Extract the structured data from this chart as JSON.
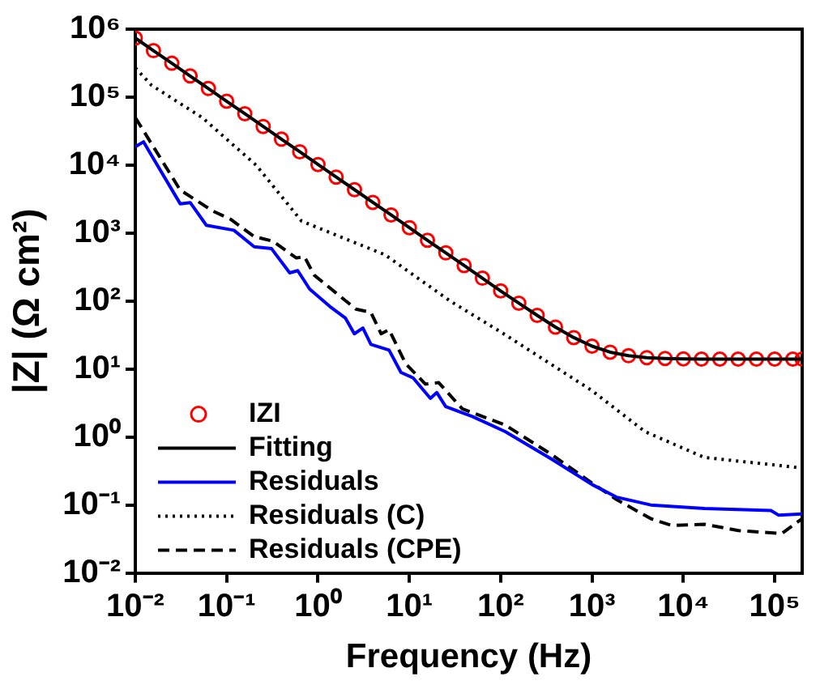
{
  "chart_data": {
    "type": "line",
    "xlabel": "Frequency (Hz)",
    "ylabel": "|Z| (Ω cm²)",
    "log": "xy",
    "grid": false,
    "legend": "bottom left",
    "xlim": [
      0.01,
      200000
    ],
    "ylim": [
      0.01,
      1000000
    ],
    "xticks": [
      {
        "value": 0.01,
        "label": "10⁻²"
      },
      {
        "value": 0.1,
        "label": "10⁻¹"
      },
      {
        "value": 1,
        "label": "10⁰"
      },
      {
        "value": 10,
        "label": "10¹"
      },
      {
        "value": 100,
        "label": "10²"
      },
      {
        "value": 1000,
        "label": "10³"
      },
      {
        "value": 10000,
        "label": "10⁴"
      },
      {
        "value": 100000,
        "label": "10⁵"
      }
    ],
    "yticks": [
      {
        "value": 0.01,
        "label": "10⁻²"
      },
      {
        "value": 0.1,
        "label": "10⁻¹"
      },
      {
        "value": 1,
        "label": "10⁰"
      },
      {
        "value": 10,
        "label": "10¹"
      },
      {
        "value": 100,
        "label": "10²"
      },
      {
        "value": 1000,
        "label": "10³"
      },
      {
        "value": 10000,
        "label": "10⁴"
      },
      {
        "value": 100000,
        "label": "10⁵"
      },
      {
        "value": 1000000,
        "label": "10⁶"
      }
    ],
    "series": [
      {
        "name": "IZI",
        "type": "scatter",
        "marker": "circle",
        "color": "#ff0000",
        "x": [
          0.01,
          0.0158,
          0.0251,
          0.0398,
          0.0631,
          0.1,
          0.158,
          0.251,
          0.398,
          0.631,
          1,
          1.58,
          2.51,
          3.98,
          6.31,
          10,
          15.8,
          25.1,
          39.8,
          63.1,
          100,
          158,
          251,
          398,
          631,
          1000,
          1580,
          2510,
          3980,
          6310,
          10000,
          15800,
          25100,
          39800,
          63100,
          100000,
          158000,
          200000
        ],
        "values": [
          740000,
          483000,
          315000,
          205000,
          134000,
          87000,
          57000,
          37000,
          24100,
          15700,
          10200,
          6670,
          4350,
          2830,
          1850,
          1200,
          783,
          511,
          333,
          217,
          141,
          93,
          61.6,
          41.4,
          29,
          21.7,
          17.7,
          15.7,
          14.7,
          14.3,
          14.1,
          14,
          14,
          14,
          14,
          14,
          14,
          14
        ]
      },
      {
        "name": "Fitting",
        "type": "line",
        "line_style": "solid",
        "color": "#000000",
        "x": [
          0.01,
          0.0158,
          0.0251,
          0.0398,
          0.0631,
          0.1,
          0.158,
          0.251,
          0.398,
          0.631,
          1,
          1.58,
          2.51,
          3.98,
          6.31,
          10,
          15.8,
          25.1,
          39.8,
          63.1,
          100,
          158,
          251,
          398,
          631,
          1000,
          1580,
          2510,
          3980,
          6310,
          10000,
          15800,
          25100,
          39800,
          63100,
          100000,
          158000,
          200000
        ],
        "values": [
          740000,
          483000,
          315000,
          205000,
          134000,
          87000,
          57000,
          37000,
          24100,
          15700,
          10200,
          6670,
          4350,
          2830,
          1850,
          1200,
          783,
          511,
          333,
          217,
          141,
          93,
          61.6,
          41.4,
          29,
          21.7,
          17.7,
          15.7,
          14.7,
          14.3,
          14.1,
          14,
          14,
          14,
          14,
          14,
          14,
          14
        ]
      },
      {
        "name": "Residuals",
        "type": "line",
        "line_style": "solid",
        "color": "#0000ff",
        "x": [
          0.01,
          0.0123,
          0.031,
          0.04,
          0.06,
          0.12,
          0.2,
          0.31,
          0.49,
          0.6,
          0.81,
          1.35,
          2.0,
          2.5,
          3.1,
          3.8,
          6.0,
          8.1,
          11,
          17,
          20,
          25,
          49,
          112,
          355,
          1000,
          1860,
          4400,
          17000,
          91000,
          110000,
          200000
        ],
        "values": [
          18600,
          22000,
          2700,
          2800,
          1300,
          1100,
          630,
          590,
          260,
          280,
          150,
          83,
          56,
          33,
          40,
          23,
          19,
          8.9,
          7.4,
          3.7,
          4.5,
          2.8,
          2.0,
          1.2,
          0.48,
          0.2,
          0.13,
          0.1,
          0.089,
          0.083,
          0.071,
          0.074
        ]
      },
      {
        "name": "Residuals (C)",
        "type": "line",
        "line_style": "dotted",
        "color": "#000000",
        "x": [
          0.01,
          0.015,
          0.054,
          0.21,
          0.66,
          5.4,
          28,
          112,
          1000,
          3800,
          17000,
          200000
        ],
        "values": [
          270000,
          150000,
          50000,
          10000,
          1500,
          480,
          100,
          32,
          4.8,
          1.2,
          0.5,
          0.35
        ]
      },
      {
        "name": "Residuals (CPE)",
        "type": "line",
        "line_style": "dashed",
        "color": "#000000",
        "x": [
          0.01,
          0.031,
          0.071,
          0.11,
          0.2,
          0.32,
          0.58,
          0.71,
          0.91,
          2.6,
          3.8,
          4.9,
          6.0,
          9.1,
          15,
          21,
          38,
          112,
          355,
          1000,
          1860,
          4400,
          7400,
          17000,
          40000,
          120000,
          200000
        ],
        "values": [
          50000,
          4300,
          2100,
          1600,
          890,
          760,
          430,
          450,
          240,
          76,
          68,
          33,
          38,
          12,
          6.0,
          6.3,
          2.6,
          1.5,
          0.56,
          0.21,
          0.12,
          0.063,
          0.05,
          0.052,
          0.042,
          0.038,
          0.063
        ]
      }
    ]
  }
}
